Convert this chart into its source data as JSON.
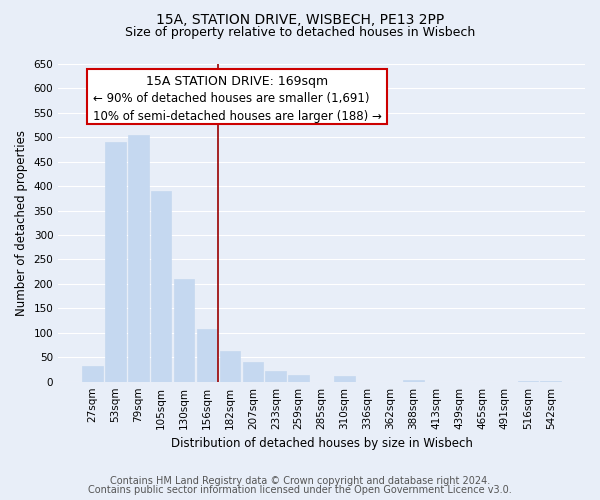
{
  "title": "15A, STATION DRIVE, WISBECH, PE13 2PP",
  "subtitle": "Size of property relative to detached houses in Wisbech",
  "xlabel": "Distribution of detached houses by size in Wisbech",
  "ylabel": "Number of detached properties",
  "bar_labels": [
    "27sqm",
    "53sqm",
    "79sqm",
    "105sqm",
    "130sqm",
    "156sqm",
    "182sqm",
    "207sqm",
    "233sqm",
    "259sqm",
    "285sqm",
    "310sqm",
    "336sqm",
    "362sqm",
    "388sqm",
    "413sqm",
    "439sqm",
    "465sqm",
    "491sqm",
    "516sqm",
    "542sqm"
  ],
  "bar_values": [
    33,
    490,
    505,
    390,
    210,
    107,
    62,
    40,
    22,
    13,
    0,
    12,
    0,
    0,
    3,
    0,
    0,
    0,
    0,
    2,
    2
  ],
  "bar_color": "#c5d8f0",
  "bar_edge_color": "#c5d8f0",
  "vline_x": 5.5,
  "vline_color": "#990000",
  "annotation_title": "15A STATION DRIVE: 169sqm",
  "annotation_line1": "← 90% of detached houses are smaller (1,691)",
  "annotation_line2": "10% of semi-detached houses are larger (188) →",
  "annotation_box_color": "#ffffff",
  "annotation_box_edge": "#cc0000",
  "ylim": [
    0,
    650
  ],
  "yticks": [
    0,
    50,
    100,
    150,
    200,
    250,
    300,
    350,
    400,
    450,
    500,
    550,
    600,
    650
  ],
  "footer1": "Contains HM Land Registry data © Crown copyright and database right 2024.",
  "footer2": "Contains public sector information licensed under the Open Government Licence v3.0.",
  "bg_color": "#e8eef8",
  "plot_bg_color": "#e8eef8",
  "grid_color": "#ffffff",
  "title_fontsize": 10,
  "subtitle_fontsize": 9,
  "axis_label_fontsize": 8.5,
  "tick_fontsize": 7.5,
  "annotation_title_fontsize": 9,
  "annotation_body_fontsize": 8.5,
  "footer_fontsize": 7
}
